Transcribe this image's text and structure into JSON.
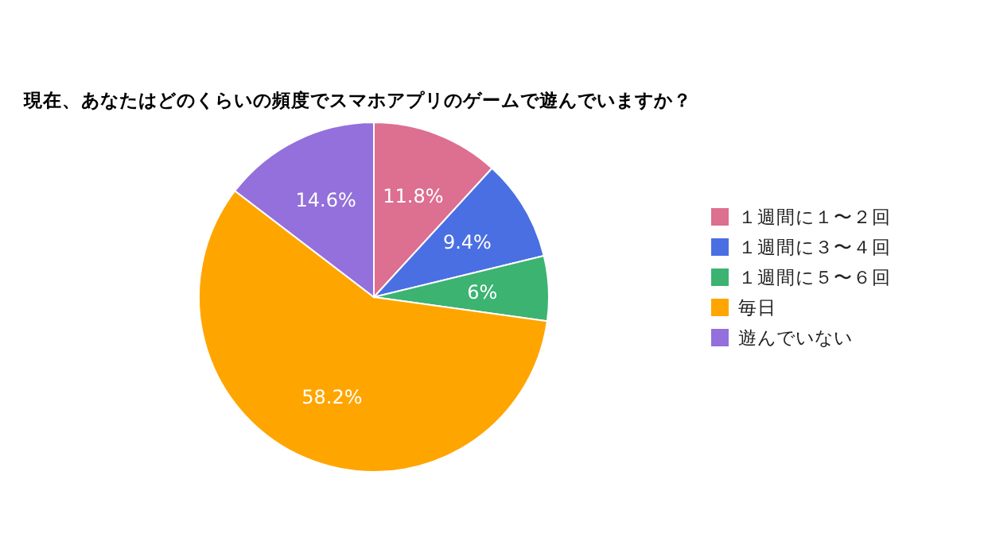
{
  "chart_data": {
    "type": "pie",
    "title": "現在、あなたはどのくらいの頻度でスマホアプリのゲームで遊んでいますか？",
    "categories": [
      "１週間に１〜２回",
      "１週間に３〜４回",
      "１週間に５〜６回",
      "毎日",
      "遊んでいない"
    ],
    "values": [
      11.8,
      9.4,
      6,
      58.2,
      14.6
    ],
    "colors": [
      "#dd6f90",
      "#4a6fe3",
      "#3cb371",
      "#ffa500",
      "#9370db"
    ],
    "value_labels": [
      "11.8%",
      "9.4%",
      "6%",
      "58.2%",
      "14.6%"
    ],
    "legend": "right"
  }
}
